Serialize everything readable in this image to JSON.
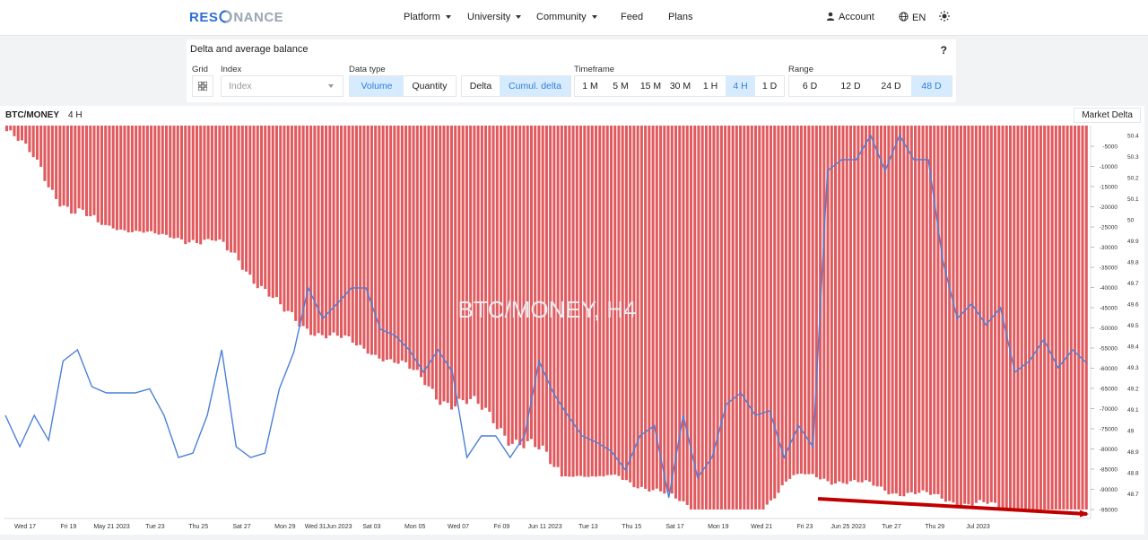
{
  "header": {
    "logo_a": "RES",
    "logo_b": "NANCE",
    "nav": [
      "Platform",
      "University",
      "Community",
      "Feed",
      "Plans"
    ],
    "account": "Account",
    "lang": "EN"
  },
  "panel": {
    "title": "Delta and average balance",
    "help": "?",
    "grid_label": "Grid",
    "index_label": "Index",
    "index_placeholder": "Index",
    "data_type_label": "Data type",
    "data_type": [
      "Volume",
      "Quantity"
    ],
    "delta_type": [
      "Delta",
      "Cumul. delta"
    ],
    "timeframe_label": "Timeframe",
    "timeframes": [
      "1 M",
      "5 M",
      "15 M",
      "30 M",
      "1 H",
      "4 H",
      "1 D"
    ],
    "range_label": "Range",
    "ranges": [
      "6 D",
      "12 D",
      "24 D",
      "48 D"
    ]
  },
  "chart_header": {
    "symbol": "BTC/MONEY",
    "timeframe": "4 H",
    "indicator": "Market Delta",
    "watermark": "BTC/MONEY, H4"
  },
  "colors": {
    "bars": "#e05a5e",
    "line": "#4b7fd8",
    "accent": "#2f7fd6",
    "arrow": "#c00000"
  },
  "chart_data": {
    "type": "bar",
    "x_ticks": [
      "Wed 17",
      "Fri 19",
      "May 21 2023",
      "Tue 23",
      "Thu 25",
      "Sat 27",
      "Mon 29",
      "Wed 31Jun 2023",
      "Sat 03",
      "Mon 05",
      "Wed 07",
      "Fri 09",
      "Jun 11 2023",
      "Tue 13",
      "Thu 15",
      "Sat 17",
      "Mon 19",
      "Wed 21",
      "Fri 23",
      "Jun 25 2023",
      "Tue 27",
      "Thu 29",
      "Jul 2023"
    ],
    "y_left_ticks": [
      "-5000",
      "-10000",
      "-15000",
      "-20000",
      "-25000",
      "-30000",
      "-35000",
      "-40000",
      "-45000",
      "-50000",
      "-55000",
      "-60000",
      "-65000",
      "-70000",
      "-75000",
      "-80000",
      "-85000",
      "-90000",
      "-95000"
    ],
    "y_right_ticks": [
      "50.4",
      "50.3",
      "50.2",
      "50.1",
      "50",
      "49.9",
      "49.8",
      "49.7",
      "49.6",
      "49.5",
      "49.4",
      "49.3",
      "49.2",
      "49.1",
      "49",
      "48.9",
      "48.8",
      "48.7"
    ],
    "delta_axis": [
      0,
      -100000
    ],
    "balance_axis": [
      48.6,
      50.45
    ],
    "series": [
      {
        "kind": "bars",
        "values": [
          -1200,
          -6000,
          -13000,
          -18000,
          -20000,
          -22000,
          -25000,
          -27000,
          -28000,
          -30000,
          -31000,
          -33000,
          -38000,
          -43000,
          -45000,
          -47000,
          -49000,
          -51000,
          -54000,
          -57000,
          -60000,
          -62000,
          -63000,
          -64500,
          -67000,
          -69000,
          -71000,
          -72000,
          -73500,
          -77000,
          -80000,
          -83000,
          -86000,
          -89000,
          -91000,
          -92000,
          -85000,
          -78000,
          -76000,
          -78000,
          -79500,
          -80000,
          -82000,
          -83000,
          -84000,
          -85500,
          -86000,
          -88000,
          -91500,
          -94500,
          -96500,
          -98500
        ]
      },
      {
        "kind": "line",
        "values": [
          49.1,
          48.95,
          49.1,
          48.98,
          49.35,
          49.4,
          49.23,
          49.2,
          49.2,
          49.2,
          49.22,
          49.1,
          48.9,
          48.92,
          49.1,
          49.4,
          48.95,
          48.9,
          48.92,
          49.22,
          49.39,
          49.7,
          49.55,
          49.62,
          49.7,
          49.7,
          49.5,
          49.47,
          49.4,
          49.3,
          49.4,
          49.3,
          48.9,
          49.0,
          49.0,
          48.9,
          49.0,
          49.35,
          49.2,
          49.1,
          49.0,
          48.97,
          48.93,
          48.85,
          49.0,
          49.05,
          48.72,
          49.1,
          48.82,
          48.9,
          49.15,
          49.2,
          49.1,
          49.12,
          48.9,
          49.05,
          48.95,
          50.25,
          50.3,
          50.3,
          50.45,
          50.25,
          50.4,
          50.3,
          50.3,
          49.83,
          49.55,
          49.62,
          49.52,
          49.6,
          49.3,
          49.35,
          49.45,
          49.32,
          49.4,
          49.34
        ]
      }
    ]
  }
}
